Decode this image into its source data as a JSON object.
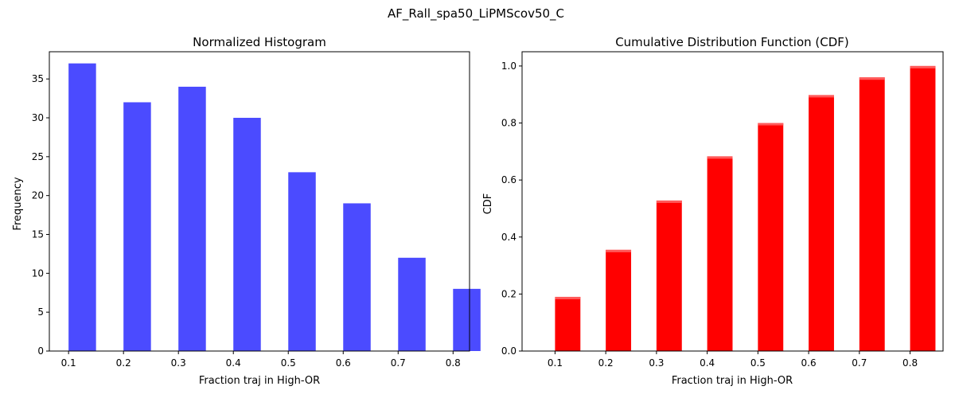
{
  "figure": {
    "suptitle": "AF_Rall_spa50_LiPMScov50_C"
  },
  "chart_data": [
    {
      "type": "bar",
      "title": "Normalized Histogram",
      "xlabel": "Fraction traj in High-OR",
      "ylabel": "Frequency",
      "bar_color": "#4b4bff",
      "x": [
        0.1,
        0.2,
        0.3,
        0.4,
        0.5,
        0.6,
        0.7,
        0.8
      ],
      "values": [
        37,
        32,
        34,
        30,
        23,
        19,
        12,
        8
      ],
      "xlim": [
        0.065,
        0.83
      ],
      "ylim": [
        0,
        38.5
      ],
      "xticks": [
        0.1,
        0.2,
        0.3,
        0.4,
        0.5,
        0.6,
        0.7,
        0.8
      ],
      "xtick_labels": [
        "0.1",
        "0.2",
        "0.3",
        "0.4",
        "0.5",
        "0.6",
        "0.7",
        "0.8"
      ],
      "yticks": [
        0,
        5,
        10,
        15,
        20,
        25,
        30,
        35
      ],
      "ytick_labels": [
        "0",
        "5",
        "10",
        "15",
        "20",
        "25",
        "30",
        "35"
      ],
      "grid": false
    },
    {
      "type": "bar",
      "title": "Cumulative Distribution Function (CDF)",
      "xlabel": "Fraction traj in High-OR",
      "ylabel": "CDF",
      "bar_color": "#ff0000",
      "x": [
        0.1,
        0.2,
        0.3,
        0.4,
        0.5,
        0.6,
        0.7,
        0.8
      ],
      "values": [
        0.19,
        0.355,
        0.528,
        0.683,
        0.8,
        0.898,
        0.96,
        1.0
      ],
      "xlim": [
        0.035,
        0.865
      ],
      "ylim": [
        0,
        1.05
      ],
      "xticks": [
        0.1,
        0.2,
        0.3,
        0.4,
        0.5,
        0.6,
        0.7,
        0.8
      ],
      "xtick_labels": [
        "0.1",
        "0.2",
        "0.3",
        "0.4",
        "0.5",
        "0.6",
        "0.7",
        "0.8"
      ],
      "yticks": [
        0,
        0.2,
        0.4,
        0.6,
        0.8,
        1.0
      ],
      "ytick_labels": [
        "0.0",
        "0.2",
        "0.4",
        "0.6",
        "0.8",
        "1.0"
      ],
      "grid": false
    }
  ]
}
